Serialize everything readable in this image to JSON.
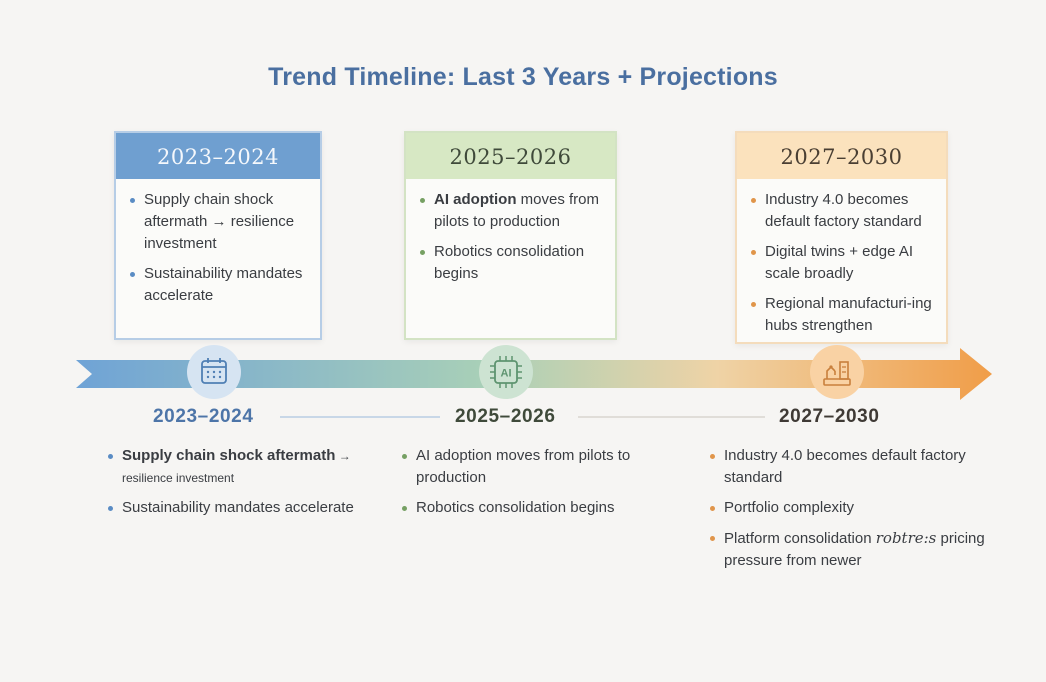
{
  "title": "Trend Timeline: Last 3 Years + Projections",
  "cards": [
    {
      "heading": "2023–2024",
      "bullets": [
        "Supply chain shock aftermath → resilience investment",
        "Sustainability mandates accelerate"
      ]
    },
    {
      "heading": "2025–2026",
      "bullets_rich": [
        {
          "bold": "AI adoption",
          "rest": " moves from pilots to production"
        }
      ],
      "bullets": [
        "Robotics consolidation begins"
      ]
    },
    {
      "heading": "2027–2030",
      "bullets": [
        "Industry 4.0 becomes default factory standard",
        "Digital twins + edge AI scale broadly",
        "Regional manufacturi-ing hubs strengthen"
      ]
    }
  ],
  "nodes": [
    {
      "icon": "calendar-icon"
    },
    {
      "icon": "ai-chip-icon",
      "text": "AI"
    },
    {
      "icon": "factory-robot-icon"
    }
  ],
  "periods": [
    "2023–2024",
    "2025–2026",
    "2027–2030"
  ],
  "lower": [
    {
      "bullets": [
        {
          "main": "Supply chain shock aftermath",
          "small": " → resilience investment"
        },
        {
          "main": "Sustainability mandates accelerate"
        }
      ]
    },
    {
      "bullets": [
        {
          "main": "AI adoption moves from pilots to production"
        },
        {
          "main": "Robotics consolidation begins"
        }
      ]
    },
    {
      "bullets": [
        {
          "main": "Industry 4.0 becomes default factory standard"
        },
        {
          "main": "Portfolio complexity"
        },
        {
          "main": "Platform consolidation ",
          "italic": "robtre:s",
          "after": " pricing pressure from newer"
        }
      ]
    }
  ],
  "colors": {
    "title": "#4a6fa0",
    "blue": "#6f9fd0",
    "green": "#a9cf9a",
    "orange": "#f0a24f"
  }
}
